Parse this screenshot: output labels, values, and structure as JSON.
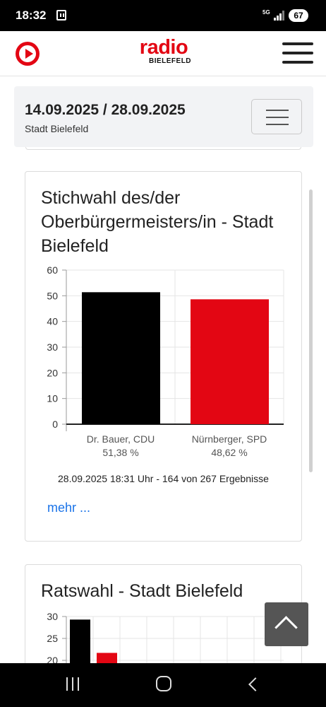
{
  "status_bar": {
    "time": "18:32",
    "network": "5G",
    "battery": "67"
  },
  "header": {
    "logo_text": "radio",
    "logo_subtext": "BIELEFELD"
  },
  "election_selector": {
    "dates": "14.09.2025 / 28.09.2025",
    "region": "Stadt Bielefeld"
  },
  "card1": {
    "title": "Stichwahl des/der Oberbürgermeisters/in - Stadt Bielefeld",
    "info": "28.09.2025 18:31 Uhr - 164 von 267 Ergebnisse",
    "more_link": "mehr ..."
  },
  "card2": {
    "title": "Ratswahl - Stadt Bielefeld"
  },
  "colors": {
    "cdu": "#000000",
    "spd": "#e30613",
    "brand": "#e30613",
    "link": "#1a73e8"
  },
  "chart_data": [
    {
      "type": "bar",
      "categories": [
        "Dr. Bauer, CDU",
        "Nürnberger, SPD"
      ],
      "value_labels": [
        "51,38 %",
        "48,62 %"
      ],
      "values": [
        51.38,
        48.62
      ],
      "colors": [
        "#000000",
        "#e30613"
      ],
      "ylim": [
        0,
        60
      ],
      "yticks": [
        0,
        10,
        20,
        30,
        40,
        50,
        60
      ],
      "grid": true
    },
    {
      "type": "bar",
      "values": [
        29.3,
        21.7
      ],
      "colors": [
        "#000000",
        "#e30613"
      ],
      "ylim": [
        0,
        30
      ],
      "yticks": [
        20,
        25,
        30
      ],
      "grid": true,
      "partially_visible": true
    }
  ]
}
